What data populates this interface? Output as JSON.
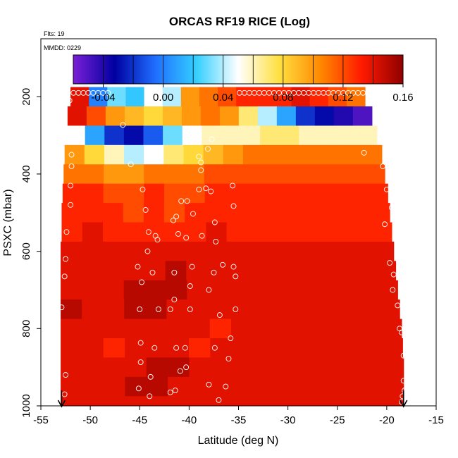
{
  "chart_data": {
    "type": "heatmap",
    "title": "ORCAS RF19 RICE (Log)",
    "flights_label": "Flts: 19",
    "date_label": "MMDD: 0229",
    "xlabel": "Latitude (deg N)",
    "ylabel": "PSXC (mbar)",
    "xlim": [
      -55,
      -15
    ],
    "ylim": [
      1000,
      50
    ],
    "x_ticks": [
      "-55",
      "-50",
      "-45",
      "-40",
      "-35",
      "-30",
      "-25",
      "-20",
      "-15"
    ],
    "x_tick_values": [
      -55,
      -50,
      -45,
      -40,
      -35,
      -30,
      -25,
      -20,
      -15
    ],
    "y_ticks": [
      "200",
      "400",
      "600",
      "800",
      "1000"
    ],
    "y_tick_values": [
      200,
      400,
      600,
      800,
      1000
    ],
    "colorbar": {
      "range": [
        -0.06,
        0.16
      ],
      "tick_labels": [
        "-0.04",
        "0.00",
        "0.04",
        "0.08",
        "0.12",
        "0.16"
      ],
      "tick_values": [
        -0.04,
        0.0,
        0.04,
        0.08,
        0.12,
        0.16
      ],
      "colors": [
        "#7a1fd6",
        "#0000a0",
        "#1f6fff",
        "#35d0ff",
        "#ffffff",
        "#ffe040",
        "#ff8800",
        "#ff1a00",
        "#900000"
      ]
    },
    "flight_range_arrows": [
      -52.9,
      -18.3
    ],
    "layers": [
      {
        "p_top": 175,
        "p_bot": 225,
        "x_start": -52.0,
        "x_end": -22.2,
        "values": [
          0.14,
          0.0,
          0.03,
          0.02,
          0.05,
          0.04,
          0.1,
          0.11,
          0.12,
          0.13,
          0.13,
          0.13,
          0.14,
          0.13,
          0.12,
          0.11
        ],
        "color_overrides": [
          [
            "-51.2",
            "#c83232"
          ],
          [
            "-35.5",
            "#ff7a00"
          ]
        ]
      },
      {
        "p_top": 225,
        "p_bot": 275,
        "x_start": -52.3,
        "x_end": -21.5,
        "values": [
          0.14,
          0.12,
          0.1,
          0.09,
          0.08,
          0.09,
          0.1,
          0.11,
          0.1,
          0.07,
          0.04,
          0.01,
          -0.02,
          -0.03,
          -0.04,
          -0.05
        ]
      },
      {
        "p_top": 275,
        "p_bot": 325,
        "x_start": -52.5,
        "x_end": -21.0,
        "values": [
          0.05,
          0.01,
          -0.02,
          -0.03,
          -0.01,
          0.03,
          0.05,
          0.06,
          0.06,
          0.06,
          0.07,
          0.07,
          0.06,
          0.06,
          0.06,
          0.06
        ]
      },
      {
        "p_top": 325,
        "p_bot": 375,
        "x_start": -52.6,
        "x_end": -20.5,
        "values": [
          0.1,
          0.08,
          0.06,
          0.04,
          0.05,
          0.07,
          0.08,
          0.09,
          0.1,
          0.11,
          0.11,
          0.11,
          0.11,
          0.11,
          0.11,
          0.11
        ]
      },
      {
        "p_top": 375,
        "p_bot": 425,
        "x_start": -52.7,
        "x_end": -20.2,
        "values": [
          0.11,
          0.11,
          0.1,
          0.1,
          0.11,
          0.11,
          0.11,
          0.12,
          0.12,
          0.12,
          0.12,
          0.12,
          0.12,
          0.12,
          0.12,
          0.12
        ]
      },
      {
        "p_top": 425,
        "p_bot": 475,
        "x_start": -52.8,
        "x_end": -19.9,
        "values": [
          0.13,
          0.13,
          0.12,
          0.12,
          0.13,
          0.12,
          0.12,
          0.13,
          0.13,
          0.13,
          0.13,
          0.13,
          0.13,
          0.13,
          0.13,
          0.13
        ]
      },
      {
        "p_top": 475,
        "p_bot": 525,
        "x_start": -52.9,
        "x_end": -19.7,
        "values": [
          0.13,
          0.13,
          0.13,
          0.12,
          0.13,
          0.12,
          0.13,
          0.13,
          0.13,
          0.13,
          0.13,
          0.13,
          0.13,
          0.13,
          0.13,
          0.13
        ]
      },
      {
        "p_top": 525,
        "p_bot": 575,
        "x_start": -52.9,
        "x_end": -19.5,
        "values": [
          0.13,
          0.14,
          0.13,
          0.13,
          0.13,
          0.13,
          0.13,
          0.14,
          0.13,
          0.13,
          0.13,
          0.13,
          0.13,
          0.13,
          0.13,
          0.13
        ]
      },
      {
        "p_top": 575,
        "p_bot": 625,
        "x_start": -53.0,
        "x_end": -19.3,
        "values": [
          0.14,
          0.14,
          0.14,
          0.14,
          0.14,
          0.14,
          0.14,
          0.14,
          0.14,
          0.14,
          0.14,
          0.14,
          0.14,
          0.14,
          0.14,
          0.14
        ]
      },
      {
        "p_top": 625,
        "p_bot": 675,
        "x_start": -53.0,
        "x_end": -19.1,
        "values": [
          0.14,
          0.14,
          0.14,
          0.14,
          0.14,
          0.15,
          0.14,
          0.14,
          0.14,
          0.14,
          0.14,
          0.14,
          0.14,
          0.14,
          0.14,
          0.14
        ]
      },
      {
        "p_top": 675,
        "p_bot": 725,
        "x_start": -53.0,
        "x_end": -18.9,
        "values": [
          0.14,
          0.14,
          0.14,
          0.15,
          0.15,
          0.15,
          0.14,
          0.14,
          0.14,
          0.14,
          0.14,
          0.14,
          0.14,
          0.14,
          0.14,
          0.14
        ]
      },
      {
        "p_top": 725,
        "p_bot": 775,
        "x_start": -53.0,
        "x_end": -18.7,
        "values": [
          0.15,
          0.14,
          0.14,
          0.15,
          0.15,
          0.14,
          0.14,
          0.14,
          0.14,
          0.14,
          0.14,
          0.14,
          0.14,
          0.14,
          0.14,
          0.14
        ]
      },
      {
        "p_top": 775,
        "p_bot": 825,
        "x_start": -53.0,
        "x_end": -18.5,
        "values": [
          0.14,
          0.14,
          0.14,
          0.14,
          0.14,
          0.14,
          0.14,
          0.13,
          0.14,
          0.14,
          0.14,
          0.14,
          0.14,
          0.14,
          0.14,
          0.14
        ]
      },
      {
        "p_top": 825,
        "p_bot": 875,
        "x_start": -53.0,
        "x_end": -18.4,
        "values": [
          0.14,
          0.14,
          0.13,
          0.14,
          0.14,
          0.14,
          0.13,
          0.14,
          0.14,
          0.14,
          0.14,
          0.14,
          0.14,
          0.14,
          0.14,
          0.14
        ]
      },
      {
        "p_top": 875,
        "p_bot": 925,
        "x_start": -53.0,
        "x_end": -18.3,
        "values": [
          0.14,
          0.14,
          0.14,
          0.14,
          0.15,
          0.15,
          0.14,
          0.14,
          0.14,
          0.14,
          0.14,
          0.14,
          0.14,
          0.14,
          0.14,
          0.14
        ]
      },
      {
        "p_top": 925,
        "p_bot": 975,
        "x_start": -53.0,
        "x_end": -18.3,
        "values": [
          0.14,
          0.14,
          0.14,
          0.15,
          0.15,
          0.14,
          0.14,
          0.14,
          0.14,
          0.14,
          0.14,
          0.14,
          0.14,
          0.14,
          0.14,
          0.14
        ]
      },
      {
        "p_top": 975,
        "p_bot": 1000,
        "x_start": -53.0,
        "x_end": -18.3,
        "values": [
          0.14,
          0.14,
          0.14,
          0.14,
          0.14,
          0.14,
          0.14,
          0.14,
          0.14,
          0.14,
          0.14,
          0.14,
          0.14,
          0.14,
          0.14,
          0.14
        ]
      }
    ],
    "sample_points": [
      [
        -51.7,
        190
      ],
      [
        -51.2,
        190
      ],
      [
        -50.7,
        190
      ],
      [
        -50.2,
        190
      ],
      [
        -49.7,
        190
      ],
      [
        -49.2,
        190
      ],
      [
        -48.7,
        190
      ],
      [
        -48.2,
        190
      ],
      [
        -34.9,
        190
      ],
      [
        -34.4,
        190
      ],
      [
        -33.9,
        190
      ],
      [
        -33.4,
        190
      ],
      [
        -32.9,
        190
      ],
      [
        -32.4,
        190
      ],
      [
        -31.9,
        190
      ],
      [
        -31.4,
        190
      ],
      [
        -30.9,
        190
      ],
      [
        -30.4,
        190
      ],
      [
        -29.9,
        190
      ],
      [
        -29.4,
        190
      ],
      [
        -28.9,
        190
      ],
      [
        -28.4,
        190
      ],
      [
        -27.9,
        190
      ],
      [
        -27.4,
        190
      ],
      [
        -26.9,
        190
      ],
      [
        -26.4,
        190
      ],
      [
        -25.9,
        190
      ],
      [
        -25.4,
        190
      ],
      [
        -24.9,
        190
      ],
      [
        -24.4,
        190
      ],
      [
        -23.9,
        190
      ],
      [
        -23.4,
        190
      ],
      [
        -22.9,
        190
      ],
      [
        -22.4,
        190
      ],
      [
        -52.1,
        210
      ],
      [
        -46.7,
        273
      ],
      [
        -39.0,
        355
      ],
      [
        -38.8,
        390
      ],
      [
        -37.7,
        310
      ],
      [
        -38.1,
        335
      ],
      [
        -38.8,
        370
      ],
      [
        -45.9,
        375
      ],
      [
        -40.8,
        470
      ],
      [
        -38.3,
        437
      ],
      [
        -37.8,
        445
      ],
      [
        -39.0,
        440
      ],
      [
        -35.6,
        430
      ],
      [
        -44.7,
        440
      ],
      [
        -40.2,
        470
      ],
      [
        -35.5,
        483
      ],
      [
        -44.4,
        493
      ],
      [
        -39.6,
        503
      ],
      [
        -41.3,
        510
      ],
      [
        -41.6,
        520
      ],
      [
        -37.4,
        525
      ],
      [
        -41.1,
        555
      ],
      [
        -43.4,
        560
      ],
      [
        -43.2,
        570
      ],
      [
        -38.7,
        560
      ],
      [
        -37.3,
        575
      ],
      [
        -44.1,
        550
      ],
      [
        -44.2,
        600
      ],
      [
        -40.3,
        565
      ],
      [
        -45.2,
        640
      ],
      [
        -43.7,
        655
      ],
      [
        -41.5,
        655
      ],
      [
        -39.7,
        640
      ],
      [
        -37.5,
        655
      ],
      [
        -36.6,
        635
      ],
      [
        -35.3,
        665
      ],
      [
        -35.5,
        640
      ],
      [
        -44.8,
        680
      ],
      [
        -39.9,
        690
      ],
      [
        -38.0,
        700
      ],
      [
        -41.5,
        725
      ],
      [
        -45.0,
        750
      ],
      [
        -43.1,
        750
      ],
      [
        -41.9,
        750
      ],
      [
        -39.9,
        750
      ],
      [
        -36.9,
        765
      ],
      [
        -35.3,
        750
      ],
      [
        -44.9,
        837
      ],
      [
        -41.3,
        850
      ],
      [
        -40.4,
        850
      ],
      [
        -43.5,
        850
      ],
      [
        -37.4,
        850
      ],
      [
        -35.8,
        825
      ],
      [
        -36.0,
        878
      ],
      [
        -44.9,
        887
      ],
      [
        -43.9,
        925
      ],
      [
        -40.3,
        900
      ],
      [
        -40.9,
        910
      ],
      [
        -38.0,
        945
      ],
      [
        -36.3,
        950
      ],
      [
        -41.9,
        965
      ],
      [
        -45.1,
        955
      ],
      [
        -41.4,
        960
      ],
      [
        -44.0,
        975
      ],
      [
        -37.0,
        985
      ],
      [
        -52.6,
        970
      ],
      [
        -52.5,
        920
      ],
      [
        -52.9,
        745
      ],
      [
        -52.6,
        665
      ],
      [
        -52.5,
        620
      ],
      [
        -52.4,
        550
      ],
      [
        -52.0,
        480
      ],
      [
        -52.0,
        430
      ],
      [
        -51.9,
        380
      ],
      [
        -51.9,
        350
      ],
      [
        -22.3,
        345
      ],
      [
        -20.4,
        380
      ],
      [
        -20.0,
        440
      ],
      [
        -19.5,
        487
      ],
      [
        -20.2,
        530
      ],
      [
        -19.7,
        630
      ],
      [
        -19.3,
        660
      ],
      [
        -19.4,
        700
      ],
      [
        -18.9,
        740
      ],
      [
        -18.7,
        800
      ],
      [
        -18.5,
        810
      ],
      [
        -18.3,
        870
      ],
      [
        -18.3,
        935
      ],
      [
        -18.2,
        960
      ],
      [
        -18.4,
        975
      ],
      [
        -18.5,
        990
      ]
    ]
  }
}
